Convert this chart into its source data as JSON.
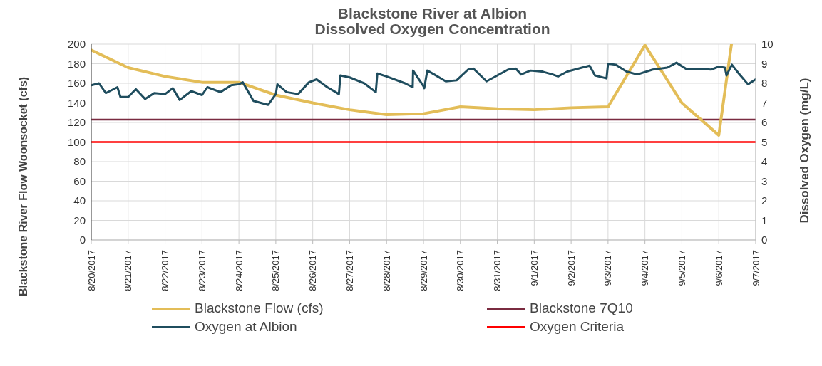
{
  "chart_data": {
    "type": "line",
    "title": "Blackstone River at Albion\nDissolved Oxygen Concentration",
    "ylabel": "Blackstone River Flow Woonsocket (cfs)",
    "y2label": "Dissolved Oxygen (mg/L)",
    "xlim": [
      "2017-08-20",
      "2017-09-07"
    ],
    "xticks": [
      {
        "value": "2017-08-20",
        "label": "8/20/2017"
      },
      {
        "value": "2017-08-21",
        "label": "8/21/2017"
      },
      {
        "value": "2017-08-22",
        "label": "8/22/2017"
      },
      {
        "value": "2017-08-23",
        "label": "8/23/2017"
      },
      {
        "value": "2017-08-24",
        "label": "8/24/2017"
      },
      {
        "value": "2017-08-25",
        "label": "8/25/2017"
      },
      {
        "value": "2017-08-26",
        "label": "8/26/2017"
      },
      {
        "value": "2017-08-27",
        "label": "8/27/2017"
      },
      {
        "value": "2017-08-28",
        "label": "8/28/2017"
      },
      {
        "value": "2017-08-29",
        "label": "8/29/2017"
      },
      {
        "value": "2017-08-30",
        "label": "8/30/2017"
      },
      {
        "value": "2017-08-31",
        "label": "8/31/2017"
      },
      {
        "value": "2017-09-01",
        "label": "9/1/2017"
      },
      {
        "value": "2017-09-02",
        "label": "9/2/2017"
      },
      {
        "value": "2017-09-03",
        "label": "9/3/2017"
      },
      {
        "value": "2017-09-04",
        "label": "9/4/2017"
      },
      {
        "value": "2017-09-05",
        "label": "9/5/2017"
      },
      {
        "value": "2017-09-06",
        "label": "9/6/2017"
      },
      {
        "value": "2017-09-07",
        "label": "9/7/2017"
      }
    ],
    "ylim": [
      0,
      200
    ],
    "yticks": [
      0,
      20,
      40,
      60,
      80,
      100,
      120,
      140,
      160,
      180,
      200
    ],
    "y2lim": [
      0,
      10
    ],
    "y2ticks": [
      0,
      1,
      2,
      3,
      4,
      5,
      6,
      7,
      8,
      9,
      10
    ],
    "grid": true,
    "legend": "bottom",
    "marker": "none",
    "line_style": "solid",
    "series": [
      {
        "name": "Blackstone Flow (cfs)",
        "color": "#e3bd58",
        "x": [
          "2017-08-20",
          "2017-08-21",
          "2017-08-22",
          "2017-08-23",
          "2017-08-24",
          "2017-08-25",
          "2017-08-26",
          "2017-08-27",
          "2017-08-28",
          "2017-08-29",
          "2017-08-30",
          "2017-08-31",
          "2017-09-01",
          "2017-09-02",
          "2017-09-03",
          "2017-09-04",
          "2017-09-05",
          "2017-09-06",
          "2017-09-06T08:15"
        ],
        "values": [
          194,
          176,
          167,
          161,
          161,
          148,
          140,
          133,
          128,
          129,
          136,
          134,
          133,
          135,
          136,
          199,
          140,
          107,
          200
        ]
      },
      {
        "name": "Oxygen at Albion",
        "color": "#1f4d5e",
        "axis": "y2",
        "x": [
          "2017-08-20",
          "2017-08-20T05:00",
          "2017-08-20T09:30",
          "2017-08-20T17:00",
          "2017-08-20T19:00",
          "2017-08-21",
          "2017-08-21T05:00",
          "2017-08-21T11:00",
          "2017-08-21T17:00",
          "2017-08-22",
          "2017-08-22T05:00",
          "2017-08-22T09:30",
          "2017-08-22T17:00",
          "2017-08-23",
          "2017-08-23T03:30",
          "2017-08-23T12:00",
          "2017-08-23T19:00",
          "2017-08-24",
          "2017-08-24T02:30",
          "2017-08-24T09:30",
          "2017-08-24T19:00",
          "2017-08-25",
          "2017-08-25T01:00",
          "2017-08-25T07:00",
          "2017-08-25T14:30",
          "2017-08-25T21:30",
          "2017-08-26T02:30",
          "2017-08-26T09:30",
          "2017-08-26T17:00",
          "2017-08-26T18:00",
          "2017-08-27",
          "2017-08-27T09:30",
          "2017-08-27T17:00",
          "2017-08-27T18:00",
          "2017-08-28",
          "2017-08-28T12:00",
          "2017-08-28T17:00",
          "2017-08-28T17:15",
          "2017-08-29",
          "2017-08-29T00:30",
          "2017-08-29T02:30",
          "2017-08-29T07:00",
          "2017-08-29T14:30",
          "2017-08-29T21:30",
          "2017-08-30T05:00",
          "2017-08-30T08:30",
          "2017-08-30T17:00",
          "2017-08-31",
          "2017-08-31T07:00",
          "2017-08-31T12:00",
          "2017-08-31T15:30",
          "2017-08-31T21:30",
          "2017-09-01T05:00",
          "2017-09-01T12:00",
          "2017-09-01T15:30",
          "2017-09-01T21:30",
          "2017-09-02T07:00",
          "2017-09-02T12:00",
          "2017-09-02T15:30",
          "2017-09-02T23:00",
          "2017-09-03",
          "2017-09-03T05:00",
          "2017-09-03T12:00",
          "2017-09-03T19:00",
          "2017-09-04T05:00",
          "2017-09-04T14:30",
          "2017-09-04T20:30",
          "2017-09-05T02:30",
          "2017-09-05T09:30",
          "2017-09-05T19:00",
          "2017-09-06",
          "2017-09-06T04:00",
          "2017-09-06T05:00",
          "2017-09-06T08:30",
          "2017-09-06T13:00",
          "2017-09-06T19:00",
          "2017-09-07"
        ],
        "values": [
          7.9,
          8.0,
          7.5,
          7.8,
          7.3,
          7.3,
          7.7,
          7.2,
          7.5,
          7.45,
          7.75,
          7.15,
          7.6,
          7.4,
          7.8,
          7.55,
          7.9,
          7.95,
          8.05,
          7.1,
          6.9,
          7.45,
          7.95,
          7.55,
          7.45,
          8.05,
          8.2,
          7.8,
          7.45,
          8.4,
          8.3,
          8.0,
          7.55,
          8.5,
          8.35,
          8.0,
          7.8,
          8.65,
          7.85,
          7.75,
          8.65,
          8.45,
          8.1,
          8.15,
          8.7,
          8.75,
          8.1,
          8.4,
          8.7,
          8.75,
          8.45,
          8.65,
          8.6,
          8.45,
          8.35,
          8.6,
          8.8,
          8.9,
          8.4,
          8.25,
          9.0,
          8.95,
          8.6,
          8.45,
          8.7,
          8.8,
          9.05,
          8.75,
          8.75,
          8.7,
          8.85,
          8.8,
          8.4,
          8.95,
          8.5,
          7.95,
          8.2
        ]
      }
    ],
    "ref_lines": [
      {
        "axis": "y",
        "value": 123,
        "label": "Blackstone 7Q10",
        "color": "#7a2b40"
      },
      {
        "axis": "y",
        "value": 100,
        "label": "Oxygen Criteria",
        "color": "#ff0000"
      }
    ]
  }
}
